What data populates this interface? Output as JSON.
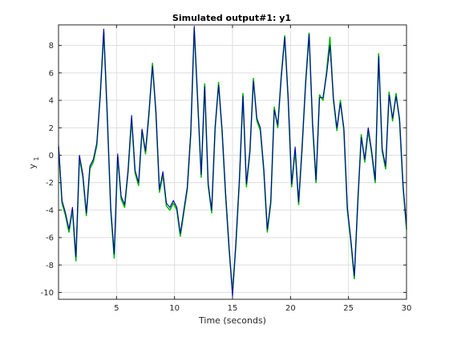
{
  "chart_data": {
    "type": "line",
    "title": "Simulated output#1: y1",
    "xlabel": "Time (seconds)",
    "ylabel": "y",
    "ylabel_subscript": "1",
    "xlim": [
      0,
      30
    ],
    "ylim": [
      -10.5,
      9.5
    ],
    "xticks": [
      5,
      10,
      15,
      20,
      25,
      30
    ],
    "yticks": [
      -10,
      -8,
      -6,
      -4,
      -2,
      0,
      2,
      4,
      6,
      8
    ],
    "grid": true,
    "legend": "none",
    "series": [
      {
        "color": "#00bb00",
        "x": [
          0,
          0.3,
          0.6,
          0.9,
          1.2,
          1.5,
          1.8,
          2.1,
          2.4,
          2.7,
          3.0,
          3.3,
          3.6,
          3.9,
          4.2,
          4.5,
          4.8,
          5.1,
          5.4,
          5.7,
          6.0,
          6.3,
          6.6,
          6.9,
          7.2,
          7.5,
          7.8,
          8.1,
          8.4,
          8.7,
          9.0,
          9.3,
          9.6,
          9.9,
          10.2,
          10.5,
          10.8,
          11.1,
          11.4,
          11.7,
          12.0,
          12.3,
          12.6,
          12.9,
          13.2,
          13.5,
          13.8,
          14.1,
          14.4,
          14.7,
          15.0,
          15.3,
          15.6,
          15.9,
          16.2,
          16.5,
          16.8,
          17.1,
          17.4,
          17.7,
          18.0,
          18.3,
          18.6,
          18.9,
          19.2,
          19.5,
          19.8,
          20.1,
          20.4,
          20.7,
          21.0,
          21.3,
          21.6,
          21.9,
          22.2,
          22.5,
          22.8,
          23.1,
          23.4,
          23.7,
          24.0,
          24.3,
          24.6,
          24.9,
          25.2,
          25.5,
          25.8,
          26.1,
          26.4,
          26.7,
          27.0,
          27.3,
          27.6,
          27.9,
          28.2,
          28.5,
          28.8,
          29.1,
          29.4,
          29.7,
          30.0
        ],
        "y": [
          0.6,
          -3.5,
          -4.4,
          -5.6,
          -4.0,
          -7.7,
          -0.2,
          -1.6,
          -4.4,
          -1.0,
          -0.5,
          0.7,
          4.5,
          9.0,
          3.0,
          -4.0,
          -7.5,
          -0.1,
          -3.2,
          -3.8,
          -1.2,
          2.7,
          -1.3,
          -2.2,
          1.8,
          0.1,
          3.0,
          6.7,
          3.0,
          -2.7,
          -1.4,
          -3.7,
          -4.0,
          -3.5,
          -4.0,
          -5.9,
          -4.2,
          -2.5,
          1.5,
          9.2,
          4.0,
          -1.6,
          5.2,
          -2.2,
          -4.2,
          1.9,
          5.3,
          1.7,
          -2.9,
          -6.8,
          -10.0,
          -6.4,
          -1.8,
          4.5,
          -2.3,
          0.2,
          5.6,
          2.5,
          1.8,
          -1.2,
          -5.6,
          -3.5,
          3.5,
          2.0,
          5.8,
          8.7,
          4.0,
          -2.3,
          0.4,
          -3.6,
          0.5,
          5.3,
          8.9,
          2.2,
          -2.0,
          4.4,
          4.0,
          6.0,
          8.6,
          4.0,
          1.8,
          4.0,
          1.8,
          -4.0,
          -6.3,
          -9.0,
          -3.5,
          1.5,
          -0.5,
          1.8,
          0.1,
          -2.0,
          7.4,
          0.3,
          -1.0,
          4.6,
          2.5,
          4.5,
          2.5,
          -2.3,
          -5.4
        ]
      },
      {
        "color": "#0000aa",
        "x": [
          0,
          0.3,
          0.6,
          0.9,
          1.2,
          1.5,
          1.8,
          2.1,
          2.4,
          2.7,
          3.0,
          3.3,
          3.6,
          3.9,
          4.2,
          4.5,
          4.8,
          5.1,
          5.4,
          5.7,
          6.0,
          6.3,
          6.6,
          6.9,
          7.2,
          7.5,
          7.8,
          8.1,
          8.4,
          8.7,
          9.0,
          9.3,
          9.6,
          9.9,
          10.2,
          10.5,
          10.8,
          11.1,
          11.4,
          11.7,
          12.0,
          12.3,
          12.6,
          12.9,
          13.2,
          13.5,
          13.8,
          14.1,
          14.4,
          14.7,
          15.0,
          15.3,
          15.6,
          15.9,
          16.2,
          16.5,
          16.8,
          17.1,
          17.4,
          17.7,
          18.0,
          18.3,
          18.6,
          18.9,
          19.2,
          19.5,
          19.8,
          20.1,
          20.4,
          20.7,
          21.0,
          21.3,
          21.6,
          21.9,
          22.2,
          22.5,
          22.8,
          23.1,
          23.4,
          23.7,
          24.0,
          24.3,
          24.6,
          24.9,
          25.2,
          25.5,
          25.8,
          26.1,
          26.4,
          26.7,
          27.0,
          27.3,
          27.6,
          27.9,
          28.2,
          28.5,
          28.8,
          29.1,
          29.4,
          29.7,
          30.0
        ],
        "y": [
          0.8,
          -3.3,
          -4.2,
          -5.4,
          -3.8,
          -7.4,
          0.0,
          -1.4,
          -4.2,
          -0.8,
          -0.3,
          0.9,
          4.3,
          9.2,
          2.8,
          -3.8,
          -7.2,
          0.1,
          -3.0,
          -3.6,
          -1.0,
          2.9,
          -1.1,
          -2.0,
          1.9,
          0.3,
          3.2,
          6.5,
          3.2,
          -2.5,
          -1.2,
          -3.5,
          -3.8,
          -3.3,
          -3.8,
          -5.7,
          -4.0,
          -2.3,
          1.7,
          9.4,
          3.8,
          -1.4,
          5.0,
          -2.0,
          -4.0,
          2.1,
          5.1,
          1.9,
          -2.7,
          -6.6,
          -10.3,
          -6.2,
          -1.6,
          4.3,
          -2.1,
          0.4,
          5.4,
          2.7,
          2.0,
          -1.0,
          -5.4,
          -3.3,
          3.3,
          2.2,
          5.6,
          8.6,
          4.2,
          -2.1,
          0.6,
          -3.4,
          0.7,
          5.1,
          8.8,
          2.4,
          -1.8,
          4.2,
          4.2,
          5.8,
          8.0,
          4.2,
          2.0,
          3.8,
          2.0,
          -3.8,
          -6.1,
          -8.8,
          -3.3,
          1.3,
          -0.3,
          2.0,
          0.3,
          -1.8,
          7.2,
          0.5,
          -0.8,
          4.4,
          2.7,
          4.3,
          2.7,
          -2.1,
          -5.2
        ]
      }
    ]
  }
}
